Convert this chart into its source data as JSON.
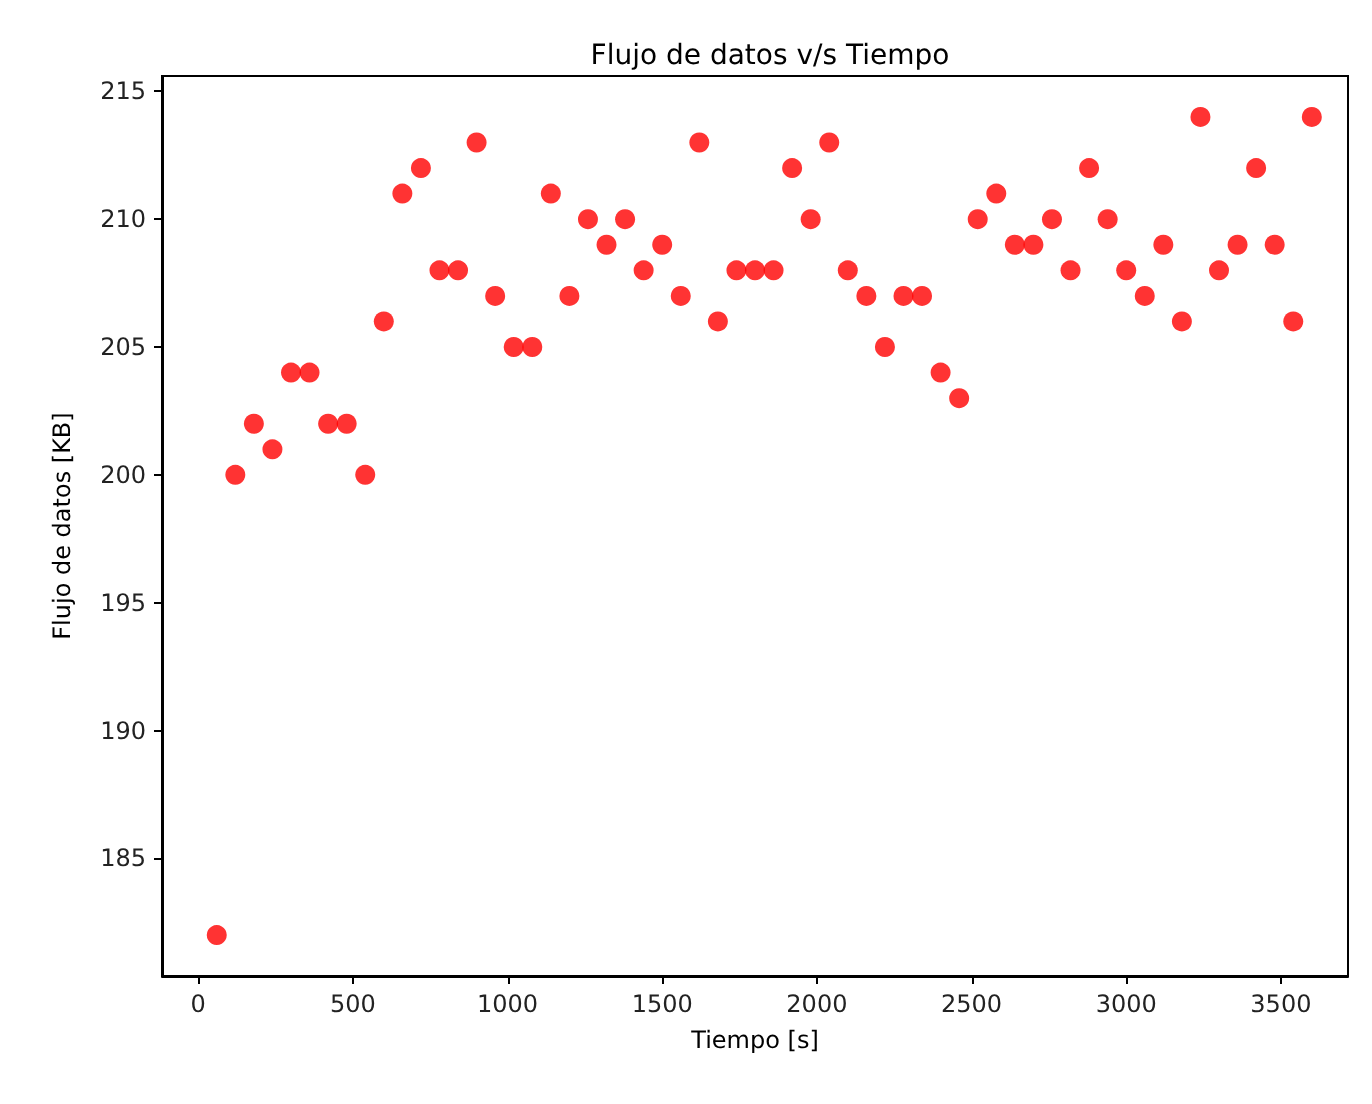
{
  "chart_data": {
    "type": "scatter",
    "title": "Flujo de datos v/s Tiempo",
    "xlabel": "Tiempo [s]",
    "ylabel": "Flujo de datos [KB]",
    "x": [
      60,
      120,
      180,
      240,
      300,
      360,
      420,
      480,
      540,
      600,
      660,
      720,
      780,
      840,
      900,
      960,
      1020,
      1080,
      1140,
      1200,
      1260,
      1320,
      1380,
      1440,
      1500,
      1560,
      1620,
      1680,
      1740,
      1800,
      1860,
      1920,
      1980,
      2040,
      2100,
      2160,
      2220,
      2280,
      2340,
      2400,
      2460,
      2520,
      2580,
      2640,
      2700,
      2760,
      2820,
      2880,
      2940,
      3000,
      3060,
      3120,
      3180,
      3240,
      3300,
      3360,
      3420,
      3480,
      3540,
      3600
    ],
    "series": [
      {
        "color": "#ff0000",
        "values": [
          182,
          200,
          202,
          201,
          204,
          204,
          202,
          202,
          200,
          206,
          211,
          212,
          208,
          208,
          213,
          207,
          205,
          205,
          211,
          207,
          210,
          209,
          210,
          208,
          209,
          207,
          213,
          206,
          208,
          208,
          208,
          212,
          210,
          213,
          208,
          207,
          205,
          207,
          207,
          204,
          203,
          210,
          211,
          209,
          209,
          210,
          208,
          212,
          210,
          208,
          207,
          209,
          206,
          214,
          208,
          209,
          212,
          209,
          206,
          214
        ]
      }
    ],
    "xlim": [
      -117,
      3717
    ],
    "ylim": [
      180.4,
      215.6
    ],
    "xticks": [
      0,
      500,
      1000,
      1500,
      2000,
      2500,
      3000,
      3500
    ],
    "yticks": [
      185,
      190,
      195,
      200,
      205,
      210,
      215
    ],
    "grid": false,
    "marker": "circle"
  }
}
